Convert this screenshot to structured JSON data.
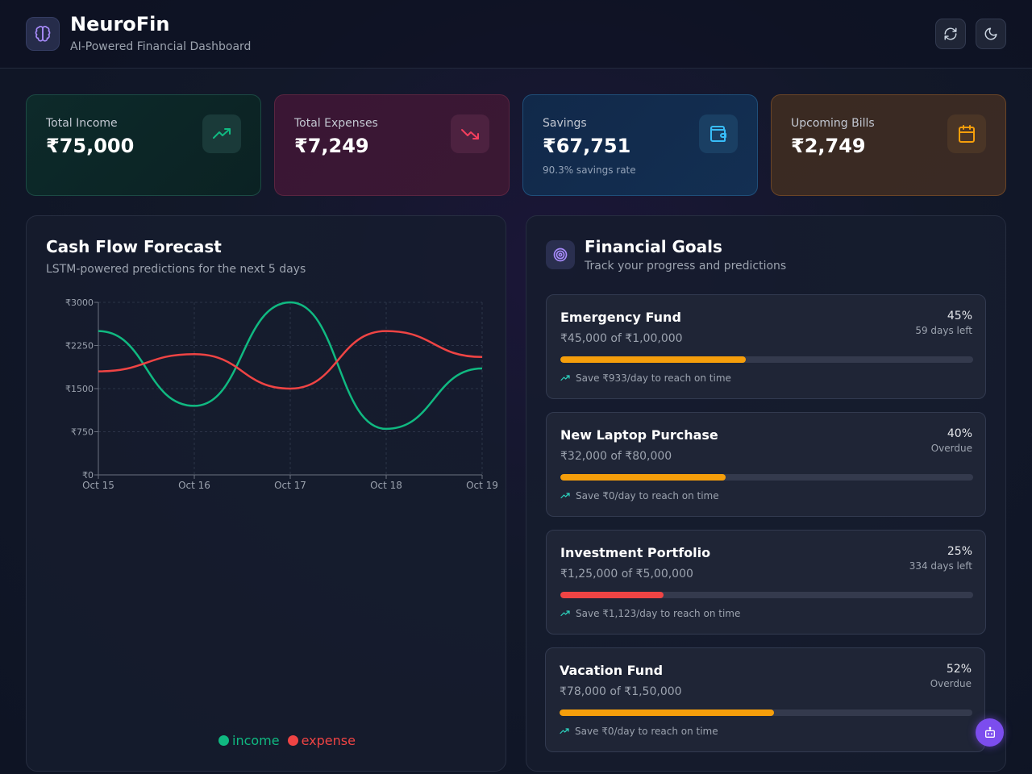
{
  "header": {
    "title": "NeuroFin",
    "subtitle": "AI-Powered Financial Dashboard"
  },
  "icons": {
    "logo": "brain-icon",
    "refresh": "refresh-icon",
    "theme": "moon-icon",
    "income": "trending-up-icon",
    "expenses": "trending-down-icon",
    "savings": "wallet-icon",
    "bills": "calendar-icon",
    "goals": "target-icon",
    "assistant": "bot-icon"
  },
  "stats": {
    "income": {
      "label": "Total Income",
      "value": "₹75,000"
    },
    "expenses": {
      "label": "Total Expenses",
      "value": "₹7,249"
    },
    "savings": {
      "label": "Savings",
      "value": "₹67,751",
      "note": "90.3% savings rate"
    },
    "bills": {
      "label": "Upcoming Bills",
      "value": "₹2,749"
    }
  },
  "forecast": {
    "title": "Cash Flow Forecast",
    "subtitle": "LSTM-powered predictions for the next 5 days"
  },
  "chart_data": {
    "type": "line",
    "x": [
      "Oct 15",
      "Oct 16",
      "Oct 17",
      "Oct 18",
      "Oct 19"
    ],
    "y_ticks": [
      "₹0",
      "₹750",
      "₹1500",
      "₹2250",
      "₹3000"
    ],
    "ylim": [
      0,
      3000
    ],
    "series": [
      {
        "name": "income",
        "color": "#10b981",
        "values": [
          2500,
          1200,
          3000,
          800,
          1850
        ]
      },
      {
        "name": "expense",
        "color": "#ef4444",
        "values": [
          1800,
          2100,
          1500,
          2500,
          2050
        ]
      }
    ],
    "legend": "bottom",
    "grid": true
  },
  "goals": {
    "title": "Financial Goals",
    "subtitle": "Track your progress and predictions",
    "items": [
      {
        "name": "Emergency Fund",
        "amount": "₹45,000 of ₹1,00,000",
        "percent_label": "45%",
        "progress": 0.45,
        "days": "59 days left",
        "tip": "Save ₹933/day to reach on time",
        "color": "#f59e0b"
      },
      {
        "name": "New Laptop Purchase",
        "amount": "₹32,000 of ₹80,000",
        "percent_label": "40%",
        "progress": 0.4,
        "days": "Overdue",
        "tip": "Save ₹0/day to reach on time",
        "color": "#f59e0b"
      },
      {
        "name": "Investment Portfolio",
        "amount": "₹1,25,000 of ₹5,00,000",
        "percent_label": "25%",
        "progress": 0.25,
        "days": "334 days left",
        "tip": "Save ₹1,123/day to reach on time",
        "color": "#ef4444"
      },
      {
        "name": "Vacation Fund",
        "amount": "₹78,000 of ₹1,50,000",
        "percent_label": "52%",
        "progress": 0.52,
        "days": "Overdue",
        "tip": "Save ₹0/day to reach on time",
        "color": "#f59e0b"
      }
    ]
  }
}
